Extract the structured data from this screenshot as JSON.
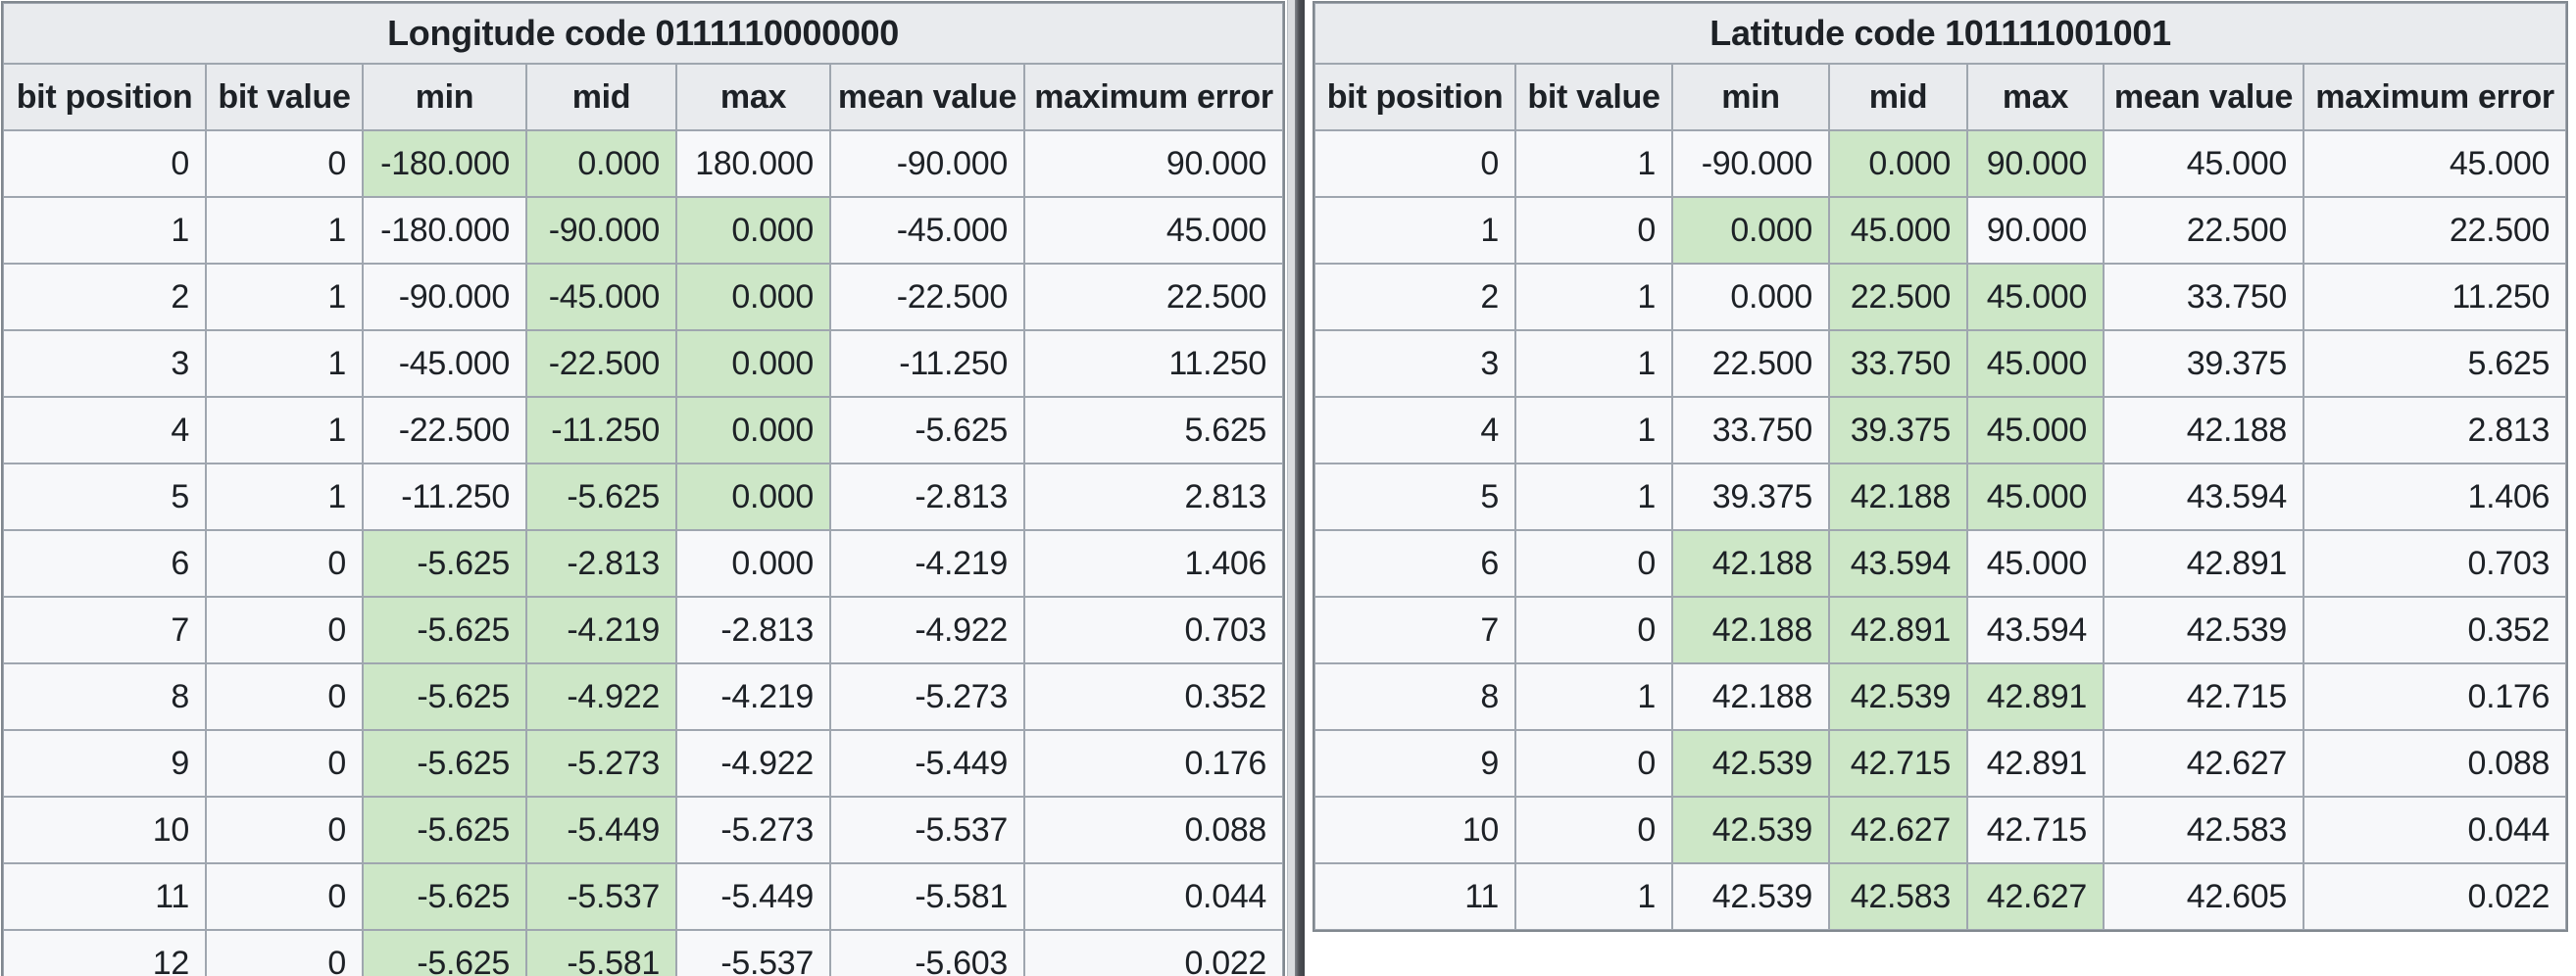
{
  "colors": {
    "highlight_green": "#cde7c7",
    "header_bg": "#e9ebee",
    "row_bg": "#f7f8fa",
    "border": "#9fa6af",
    "scrollbar_thumb": "#4b4e53",
    "scrollbar_track": "#d9dbde",
    "text": "#1d2126"
  },
  "tables": [
    {
      "id": "longitude",
      "title": "Longitude code 0111110000000",
      "columns": [
        "bit position",
        "bit value",
        "min",
        "mid",
        "max",
        "mean value",
        "maximum error"
      ],
      "rows": [
        {
          "cells": [
            "0",
            "0",
            "-180.000",
            "0.000",
            "180.000",
            "-90.000",
            "90.000"
          ],
          "highlight": [
            2,
            3
          ]
        },
        {
          "cells": [
            "1",
            "1",
            "-180.000",
            "-90.000",
            "0.000",
            "-45.000",
            "45.000"
          ],
          "highlight": [
            3,
            4
          ]
        },
        {
          "cells": [
            "2",
            "1",
            "-90.000",
            "-45.000",
            "0.000",
            "-22.500",
            "22.500"
          ],
          "highlight": [
            3,
            4
          ]
        },
        {
          "cells": [
            "3",
            "1",
            "-45.000",
            "-22.500",
            "0.000",
            "-11.250",
            "11.250"
          ],
          "highlight": [
            3,
            4
          ]
        },
        {
          "cells": [
            "4",
            "1",
            "-22.500",
            "-11.250",
            "0.000",
            "-5.625",
            "5.625"
          ],
          "highlight": [
            3,
            4
          ]
        },
        {
          "cells": [
            "5",
            "1",
            "-11.250",
            "-5.625",
            "0.000",
            "-2.813",
            "2.813"
          ],
          "highlight": [
            3,
            4
          ]
        },
        {
          "cells": [
            "6",
            "0",
            "-5.625",
            "-2.813",
            "0.000",
            "-4.219",
            "1.406"
          ],
          "highlight": [
            2,
            3
          ]
        },
        {
          "cells": [
            "7",
            "0",
            "-5.625",
            "-4.219",
            "-2.813",
            "-4.922",
            "0.703"
          ],
          "highlight": [
            2,
            3
          ]
        },
        {
          "cells": [
            "8",
            "0",
            "-5.625",
            "-4.922",
            "-4.219",
            "-5.273",
            "0.352"
          ],
          "highlight": [
            2,
            3
          ]
        },
        {
          "cells": [
            "9",
            "0",
            "-5.625",
            "-5.273",
            "-4.922",
            "-5.449",
            "0.176"
          ],
          "highlight": [
            2,
            3
          ]
        },
        {
          "cells": [
            "10",
            "0",
            "-5.625",
            "-5.449",
            "-5.273",
            "-5.537",
            "0.088"
          ],
          "highlight": [
            2,
            3
          ]
        },
        {
          "cells": [
            "11",
            "0",
            "-5.625",
            "-5.537",
            "-5.449",
            "-5.581",
            "0.044"
          ],
          "highlight": [
            2,
            3
          ]
        },
        {
          "cells": [
            "12",
            "0",
            "-5.625",
            "-5.581",
            "-5.537",
            "-5.603",
            "0.022"
          ],
          "highlight": [
            2,
            3
          ]
        }
      ]
    },
    {
      "id": "latitude",
      "title": "Latitude code 101111001001",
      "columns": [
        "bit position",
        "bit value",
        "min",
        "mid",
        "max",
        "mean value",
        "maximum error"
      ],
      "rows": [
        {
          "cells": [
            "0",
            "1",
            "-90.000",
            "0.000",
            "90.000",
            "45.000",
            "45.000"
          ],
          "highlight": [
            3,
            4
          ]
        },
        {
          "cells": [
            "1",
            "0",
            "0.000",
            "45.000",
            "90.000",
            "22.500",
            "22.500"
          ],
          "highlight": [
            2,
            3
          ]
        },
        {
          "cells": [
            "2",
            "1",
            "0.000",
            "22.500",
            "45.000",
            "33.750",
            "11.250"
          ],
          "highlight": [
            3,
            4
          ]
        },
        {
          "cells": [
            "3",
            "1",
            "22.500",
            "33.750",
            "45.000",
            "39.375",
            "5.625"
          ],
          "highlight": [
            3,
            4
          ]
        },
        {
          "cells": [
            "4",
            "1",
            "33.750",
            "39.375",
            "45.000",
            "42.188",
            "2.813"
          ],
          "highlight": [
            3,
            4
          ]
        },
        {
          "cells": [
            "5",
            "1",
            "39.375",
            "42.188",
            "45.000",
            "43.594",
            "1.406"
          ],
          "highlight": [
            3,
            4
          ]
        },
        {
          "cells": [
            "6",
            "0",
            "42.188",
            "43.594",
            "45.000",
            "42.891",
            "0.703"
          ],
          "highlight": [
            2,
            3
          ]
        },
        {
          "cells": [
            "7",
            "0",
            "42.188",
            "42.891",
            "43.594",
            "42.539",
            "0.352"
          ],
          "highlight": [
            2,
            3
          ]
        },
        {
          "cells": [
            "8",
            "1",
            "42.188",
            "42.539",
            "42.891",
            "42.715",
            "0.176"
          ],
          "highlight": [
            3,
            4
          ]
        },
        {
          "cells": [
            "9",
            "0",
            "42.539",
            "42.715",
            "42.891",
            "42.627",
            "0.088"
          ],
          "highlight": [
            2,
            3
          ]
        },
        {
          "cells": [
            "10",
            "0",
            "42.539",
            "42.627",
            "42.715",
            "42.583",
            "0.044"
          ],
          "highlight": [
            2,
            3
          ]
        },
        {
          "cells": [
            "11",
            "1",
            "42.539",
            "42.583",
            "42.627",
            "42.605",
            "0.022"
          ],
          "highlight": [
            3,
            4
          ]
        }
      ]
    }
  ]
}
